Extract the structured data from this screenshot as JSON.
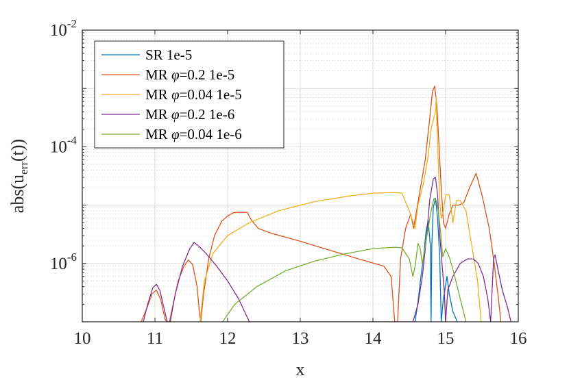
{
  "chart_data": {
    "type": "line",
    "xlabel": "x",
    "ylabel_parts": {
      "pre": "abs(u",
      "sub": "err",
      "post": "(t))"
    },
    "xlim": [
      10,
      16
    ],
    "ylim": [
      1e-07,
      0.01
    ],
    "yscale": "log",
    "grid": true,
    "minor_grid": true,
    "legend_position": "top-left",
    "x_ticks": [
      10,
      11,
      12,
      13,
      14,
      15,
      16
    ],
    "x_tick_labels": [
      "10",
      "11",
      "12",
      "13",
      "14",
      "15",
      "16"
    ],
    "y_ticks": [
      {
        "value": 1e-06,
        "base": "10",
        "exp": "-6"
      },
      {
        "value": 0.0001,
        "base": "10",
        "exp": "-4"
      },
      {
        "value": 0.01,
        "base": "10",
        "exp": "-2"
      }
    ],
    "series": [
      {
        "name": "SR 1e-5",
        "legend": {
          "pre": "SR 1e-5",
          "phi": "",
          "post": ""
        },
        "color": "#0072BD",
        "points": [
          [
            14.58,
            1e-07
          ],
          [
            14.62,
            2.2e-07
          ],
          [
            14.66,
            6e-07
          ],
          [
            14.7,
            1.4e-06
          ],
          [
            14.73,
            3.5e-06
          ],
          [
            14.76,
            5.5e-06
          ],
          [
            14.79,
            2e-06
          ],
          [
            14.8,
            1e-07
          ],
          [
            14.81,
            2e-06
          ],
          [
            14.83,
            9e-06
          ],
          [
            14.86,
            1.3e-05
          ],
          [
            14.89,
            6e-06
          ],
          [
            14.92,
            1.2e-06
          ],
          [
            14.94,
            1e-07
          ],
          [
            14.97,
            2.5e-07
          ],
          [
            15.02,
            6e-07
          ],
          [
            15.05,
            3e-07
          ],
          [
            15.1,
            1.5e-07
          ],
          [
            15.16,
            1e-07
          ]
        ]
      },
      {
        "name": "MR φ=0.2 1e-5",
        "legend": {
          "pre": "MR ",
          "phi": "φ",
          "post": "=0.2 1e-5"
        },
        "color": "#D95319",
        "points": [
          [
            10.81,
            1e-07
          ],
          [
            10.88,
            1.6e-07
          ],
          [
            10.96,
            3e-07
          ],
          [
            11.02,
            3.5e-07
          ],
          [
            11.08,
            2.4e-07
          ],
          [
            11.14,
            1.1e-07
          ],
          [
            11.17,
            1e-07
          ],
          [
            11.2,
            1e-07
          ],
          [
            11.25,
            2e-07
          ],
          [
            11.32,
            5e-07
          ],
          [
            11.4,
            9e-07
          ],
          [
            11.46,
            1.15e-06
          ],
          [
            11.52,
            9.5e-07
          ],
          [
            11.58,
            4e-07
          ],
          [
            11.61,
            1.5e-07
          ],
          [
            11.63,
            1e-07
          ],
          [
            11.67,
            3e-07
          ],
          [
            11.74,
            1.2e-06
          ],
          [
            11.82,
            3e-06
          ],
          [
            11.92,
            5.3e-06
          ],
          [
            12.0,
            6.5e-06
          ],
          [
            12.08,
            7.4e-06
          ],
          [
            12.15,
            7.5e-06
          ],
          [
            12.27,
            7.5e-06
          ],
          [
            12.33,
            5.5e-06
          ],
          [
            12.42,
            4e-06
          ],
          [
            12.6,
            3.3e-06
          ],
          [
            13.0,
            2.4e-06
          ],
          [
            13.4,
            1.7e-06
          ],
          [
            13.8,
            1.2e-06
          ],
          [
            14.15,
            9e-07
          ],
          [
            14.25,
            6e-07
          ],
          [
            14.3,
            1e-07
          ],
          [
            14.34,
            1e-07
          ],
          [
            14.38,
            1.2e-06
          ],
          [
            14.45,
            4e-06
          ],
          [
            14.52,
            7e-06
          ],
          [
            14.56,
            4e-06
          ],
          [
            14.6,
            8e-06
          ],
          [
            14.66,
            2.2e-05
          ],
          [
            14.72,
            6e-05
          ],
          [
            14.78,
            0.0003
          ],
          [
            14.82,
            0.0009
          ],
          [
            14.85,
            0.0011
          ],
          [
            14.88,
            0.0005
          ],
          [
            14.91,
            0.0001
          ],
          [
            14.94,
            2e-05
          ],
          [
            14.97,
            5e-06
          ],
          [
            15.0,
            4e-06
          ],
          [
            15.05,
            7e-06
          ],
          [
            15.1,
            1e-05
          ],
          [
            15.18,
            1e-05
          ],
          [
            15.25,
            1.1e-05
          ],
          [
            15.33,
            2e-05
          ],
          [
            15.42,
            3.5e-05
          ],
          [
            15.5,
            1.5e-05
          ],
          [
            15.6,
            4e-06
          ],
          [
            15.66,
            1.2e-06
          ],
          [
            15.72,
            3e-07
          ],
          [
            15.76,
            1e-07
          ]
        ]
      },
      {
        "name": "MR φ=0.04 1e-5",
        "legend": {
          "pre": "MR ",
          "phi": "φ",
          "post": "=0.04 1e-5"
        },
        "color": "#EDB120",
        "points": [
          [
            11.62,
            1e-07
          ],
          [
            11.68,
            5e-07
          ],
          [
            11.8,
            1.5e-06
          ],
          [
            12.0,
            3e-06
          ],
          [
            12.3,
            5e-06
          ],
          [
            12.7,
            8e-06
          ],
          [
            13.2,
            1.15e-05
          ],
          [
            13.7,
            1.45e-05
          ],
          [
            14.0,
            1.6e-05
          ],
          [
            14.3,
            1.65e-05
          ],
          [
            14.4,
            1.6e-05
          ],
          [
            14.5,
            8e-06
          ],
          [
            14.58,
            4e-06
          ],
          [
            14.62,
            1e-05
          ],
          [
            14.7,
            2.5e-05
          ],
          [
            14.76,
            7e-05
          ],
          [
            14.8,
            0.0002
          ],
          [
            14.84,
            0.00032
          ],
          [
            14.86,
            0.0004
          ],
          [
            14.87,
            0.0007
          ],
          [
            14.88,
            0.00024
          ],
          [
            14.9,
            5e-05
          ],
          [
            14.92,
            1.1e-05
          ],
          [
            14.94,
            6e-06
          ],
          [
            14.97,
            8e-06
          ],
          [
            15.0,
            1.5e-05
          ],
          [
            15.05,
            1.5e-05
          ],
          [
            15.1,
            5e-06
          ],
          [
            15.15,
            1.2e-05
          ],
          [
            15.2,
            1.2e-05
          ],
          [
            15.28,
            8e-06
          ],
          [
            15.36,
            2e-06
          ],
          [
            15.44,
            5e-07
          ],
          [
            15.49,
            1e-07
          ]
        ]
      },
      {
        "name": "MR φ=0.2 1e-6",
        "legend": {
          "pre": "MR ",
          "phi": "φ",
          "post": "=0.2 1e-6"
        },
        "color": "#7E2F8E",
        "points": [
          [
            10.84,
            1e-07
          ],
          [
            10.9,
            2e-07
          ],
          [
            10.97,
            3.8e-07
          ],
          [
            11.02,
            4.4e-07
          ],
          [
            11.07,
            3.4e-07
          ],
          [
            11.13,
            1.6e-07
          ],
          [
            11.17,
            1e-07
          ],
          [
            11.21,
            1e-07
          ],
          [
            11.28,
            3e-07
          ],
          [
            11.38,
            9e-07
          ],
          [
            11.48,
            1.8e-06
          ],
          [
            11.54,
            2.3e-06
          ],
          [
            11.6,
            2e-06
          ],
          [
            11.7,
            1.5e-06
          ],
          [
            11.85,
            9e-07
          ],
          [
            12.0,
            5e-07
          ],
          [
            12.15,
            2.5e-07
          ],
          [
            12.3,
            1e-07
          ],
          [
            14.55,
            1e-07
          ],
          [
            14.62,
            2e-07
          ],
          [
            14.68,
            6e-07
          ],
          [
            14.74,
            3e-06
          ],
          [
            14.78,
            1.2e-05
          ],
          [
            14.83,
            2.8e-05
          ],
          [
            14.86,
            3e-05
          ],
          [
            14.89,
            1.5e-05
          ],
          [
            14.92,
            3e-06
          ],
          [
            14.95,
            1e-06
          ],
          [
            14.98,
            3.5e-07
          ],
          [
            15.0,
            1e-07
          ],
          [
            15.03,
            3.5e-07
          ],
          [
            15.1,
            6e-07
          ],
          [
            15.2,
            1e-06
          ],
          [
            15.3,
            1.2e-06
          ],
          [
            15.38,
            1.2e-06
          ],
          [
            15.45,
            1e-06
          ],
          [
            15.52,
            6e-07
          ],
          [
            15.58,
            2.5e-07
          ],
          [
            15.62,
            1e-07
          ],
          [
            15.66,
            1.2e-06
          ],
          [
            15.68,
            1.4e-06
          ],
          [
            15.72,
            8e-07
          ],
          [
            15.78,
            3.5e-07
          ],
          [
            15.85,
            1.8e-07
          ],
          [
            15.9,
            1e-07
          ]
        ]
      },
      {
        "name": "MR φ=0.04 1e-6",
        "legend": {
          "pre": "MR ",
          "phi": "φ",
          "post": "=0.04 1e-6"
        },
        "color": "#77AC30",
        "points": [
          [
            11.93,
            1e-07
          ],
          [
            12.1,
            2e-07
          ],
          [
            12.4,
            4e-07
          ],
          [
            12.8,
            7.5e-07
          ],
          [
            13.2,
            1.1e-06
          ],
          [
            13.6,
            1.45e-06
          ],
          [
            14.0,
            1.8e-06
          ],
          [
            14.3,
            1.9e-06
          ],
          [
            14.4,
            1.85e-06
          ],
          [
            14.5,
            1.2e-06
          ],
          [
            14.55,
            6e-07
          ],
          [
            14.58,
            9e-07
          ],
          [
            14.62,
            2.2e-06
          ],
          [
            14.65,
            1.8e-06
          ],
          [
            14.68,
            1e-06
          ],
          [
            14.72,
            2e-06
          ],
          [
            14.76,
            4e-06
          ],
          [
            14.8,
            8e-06
          ],
          [
            14.84,
            1.3e-05
          ],
          [
            14.87,
            1.2e-05
          ],
          [
            14.9,
            8e-06
          ],
          [
            14.93,
            3.5e-06
          ],
          [
            14.96,
            1.3e-06
          ],
          [
            15.0,
            1.8e-06
          ],
          [
            15.05,
            1.3e-06
          ],
          [
            15.1,
            8e-07
          ],
          [
            15.16,
            4e-07
          ],
          [
            15.22,
            2e-07
          ],
          [
            15.28,
            1e-07
          ]
        ]
      }
    ]
  }
}
